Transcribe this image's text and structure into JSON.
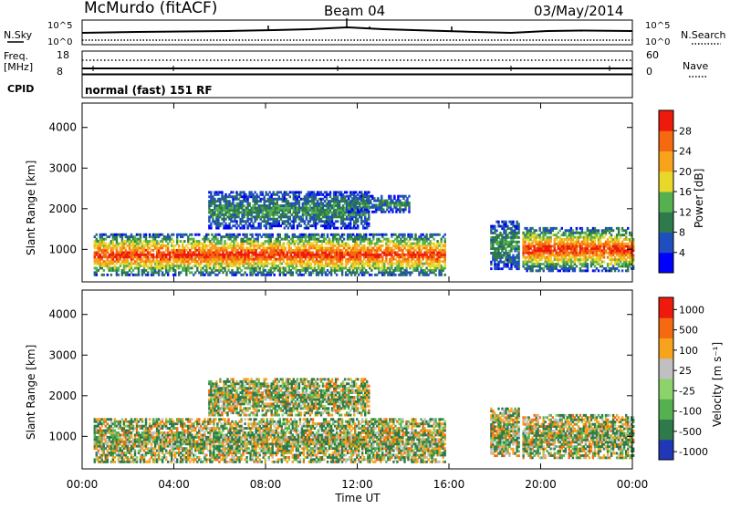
{
  "header": {
    "station": "McMurdo (fitACF)",
    "beam": "Beam 04",
    "date": "03/May/2014"
  },
  "top_panels": {
    "nsky_label": "N.Sky",
    "nsearch_label": "N.Search",
    "nsky_ticks": [
      "10^5",
      "10^0"
    ],
    "nsearch_ticks": [
      "10^5",
      "10^0"
    ],
    "freq_label": "Freq.",
    "freq_unit": "[MHz]",
    "freq_ticks": [
      "18",
      "8"
    ],
    "nave_label": "Nave",
    "nave_ticks": [
      "60",
      "0"
    ],
    "cpid_label": "CPID",
    "cpid_text": "normal (fast) 151 RF"
  },
  "x_axis": {
    "label": "Time UT",
    "ticks": [
      "00:00",
      "04:00",
      "08:00",
      "12:00",
      "16:00",
      "20:00",
      "00:00"
    ]
  },
  "chart_data": [
    {
      "type": "heatmap",
      "quantity": "Power",
      "ylabel": "Slant Range [km]",
      "xlabel": "Time UT",
      "xlim": [
        0,
        24
      ],
      "ylim": [
        200,
        4600
      ],
      "yticks": [
        "1000",
        "2000",
        "3000",
        "4000"
      ],
      "colorbar": {
        "label": "Power [dB]",
        "ticks": [
          "4",
          "8",
          "12",
          "16",
          "20",
          "24",
          "28"
        ],
        "range": [
          0,
          32
        ],
        "colors": [
          "#0000ff",
          "#1f4fbf",
          "#2e7a4a",
          "#55b04f",
          "#e8d82a",
          "#f7a31c",
          "#f56a10",
          "#ee1a0c"
        ]
      },
      "echo_bands": [
        {
          "t_start": 0.5,
          "t_end": 15.8,
          "range_min": 350,
          "range_max": 1350,
          "level": "high"
        },
        {
          "t_start": 5.5,
          "t_end": 12.5,
          "range_min": 1500,
          "range_max": 2400,
          "level": "low"
        },
        {
          "t_start": 11.5,
          "t_end": 14.3,
          "range_min": 1900,
          "range_max": 2300,
          "level": "low"
        },
        {
          "t_start": 17.8,
          "t_end": 19.0,
          "range_min": 500,
          "range_max": 1700,
          "level": "low"
        },
        {
          "t_start": 19.2,
          "t_end": 24.0,
          "range_min": 450,
          "range_max": 1500,
          "level": "high"
        }
      ]
    },
    {
      "type": "heatmap",
      "quantity": "Velocity",
      "ylabel": "Slant Range [km]",
      "xlabel": "Time UT",
      "xlim": [
        0,
        24
      ],
      "ylim": [
        200,
        4600
      ],
      "yticks": [
        "1000",
        "2000",
        "3000",
        "4000"
      ],
      "colorbar": {
        "label": "Velocity [m s⁻¹]",
        "ticks": [
          "1000",
          "500",
          "100",
          "25",
          "-25",
          "-100",
          "-500",
          "-1000"
        ],
        "colors": [
          "#2038b8",
          "#2e7a4a",
          "#55b04f",
          "#8cd46a",
          "#c0c0c0",
          "#f7a31c",
          "#f56a10",
          "#ee1a0c"
        ]
      },
      "echo_bands": [
        {
          "t_start": 0.5,
          "t_end": 15.8,
          "range_min": 350,
          "range_max": 1400,
          "level": "mixed"
        },
        {
          "t_start": 5.5,
          "t_end": 12.5,
          "range_min": 1500,
          "range_max": 2400,
          "level": "mixed"
        },
        {
          "t_start": 17.8,
          "t_end": 19.0,
          "range_min": 500,
          "range_max": 1700,
          "level": "mixed"
        },
        {
          "t_start": 19.2,
          "t_end": 24.0,
          "range_min": 450,
          "range_max": 1500,
          "level": "mixed"
        }
      ]
    }
  ]
}
